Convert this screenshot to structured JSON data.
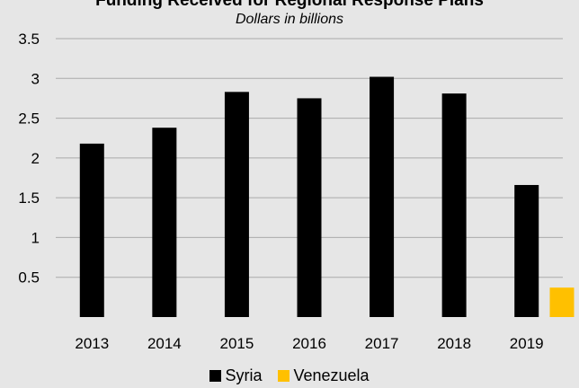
{
  "chart_data": {
    "type": "bar",
    "title": "Funding Received for Regional Response Plans",
    "subtitle": "Dollars in billions",
    "categories": [
      "2013",
      "2014",
      "2015",
      "2016",
      "2017",
      "2018",
      "2019"
    ],
    "series": [
      {
        "name": "Syria",
        "color": "#000000",
        "values": [
          2.18,
          2.38,
          2.83,
          2.75,
          3.02,
          2.81,
          1.66
        ]
      },
      {
        "name": "Venezuela",
        "color": "#ffc000",
        "values": [
          null,
          null,
          null,
          null,
          null,
          null,
          0.37
        ]
      }
    ],
    "ylim": [
      0,
      3.5
    ],
    "yticks": [
      "0.5",
      "1",
      "1.5",
      "2",
      "2.5",
      "3",
      "3.5"
    ],
    "ytick_values": [
      0.5,
      1,
      1.5,
      2,
      2.5,
      3,
      3.5
    ],
    "grid": true,
    "legend_position": "bottom",
    "background_color": "#e6e6e6",
    "gridline_color": "#aaaaaa"
  }
}
